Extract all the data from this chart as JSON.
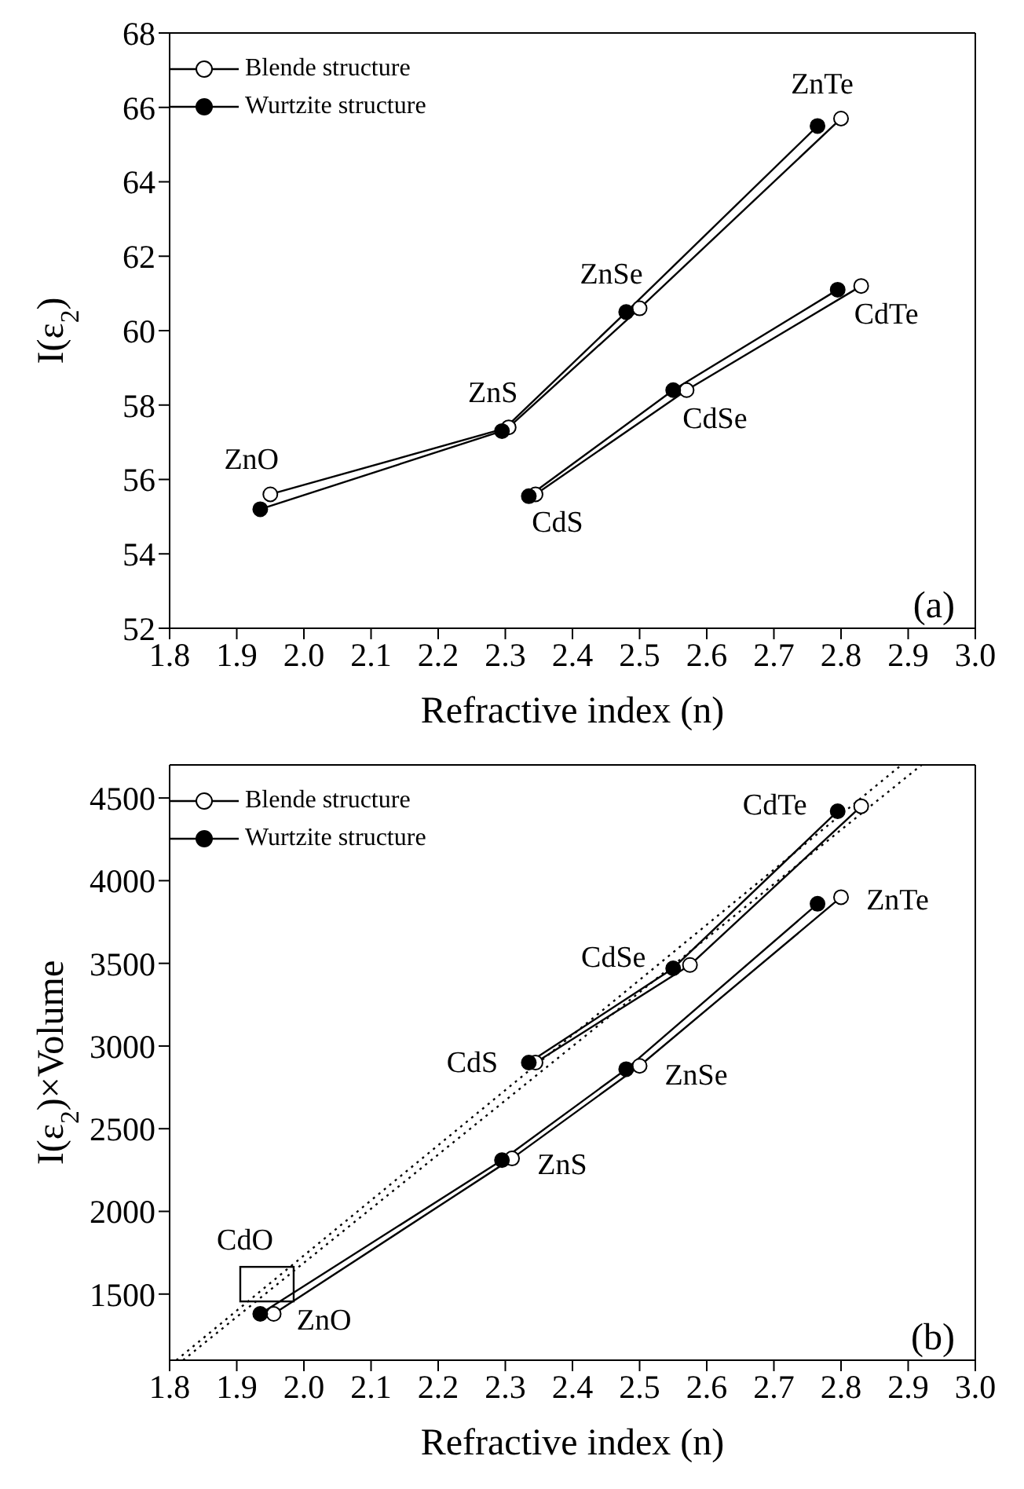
{
  "chart_data": [
    {
      "type": "line",
      "xlabel": "Refractive index (n)",
      "ylabel": "I(ε$_{2}$)",
      "xlim": [
        1.8,
        3.0
      ],
      "xticks": [
        {
          "value": 1.8,
          "label": "1.8"
        },
        {
          "value": 1.9,
          "label": "1.9"
        },
        {
          "value": 2.0,
          "label": "2.0"
        },
        {
          "value": 2.1,
          "label": "2.1"
        },
        {
          "value": 2.2,
          "label": "2.2"
        },
        {
          "value": 2.3,
          "label": "2.3"
        },
        {
          "value": 2.4,
          "label": "2.4"
        },
        {
          "value": 2.5,
          "label": "2.5"
        },
        {
          "value": 2.6,
          "label": "2.6"
        },
        {
          "value": 2.7,
          "label": "2.7"
        },
        {
          "value": 2.8,
          "label": "2.8"
        },
        {
          "value": 2.9,
          "label": "2.9"
        },
        {
          "value": 3.0,
          "label": "3.0"
        }
      ],
      "ylim": [
        52,
        68
      ],
      "yticks": [
        52,
        54,
        56,
        58,
        60,
        62,
        64,
        66,
        68
      ],
      "grid": false,
      "legend": "top left",
      "marker": "circle",
      "line_style": "solid",
      "series": [
        {
          "name": "Blende structure",
          "color": "#000000",
          "x": [
            1.95,
            2.305,
            2.5,
            2.8
          ],
          "values": [
            55.6,
            57.4,
            60.6,
            65.7
          ]
        },
        {
          "name": "Wurtzite structure",
          "color": "#000000",
          "x": [
            1.935,
            2.295,
            2.48,
            2.765
          ],
          "values": [
            55.2,
            57.3,
            60.5,
            65.5
          ]
        },
        {
          "color": "#000000",
          "x": [
            2.345,
            2.57,
            2.83
          ],
          "values": [
            55.6,
            58.4,
            61.2
          ]
        },
        {
          "color": "#000000",
          "x": [
            2.335,
            2.55,
            2.795
          ],
          "values": [
            55.55,
            58.4,
            61.1
          ]
        }
      ],
      "annotations": [
        {
          "text": "ZnO",
          "x": 1.95,
          "y": 55.6
        },
        {
          "text": "ZnS",
          "x": 2.305,
          "y": 57.4
        },
        {
          "text": "ZnSe",
          "x": 2.5,
          "y": 60.6
        },
        {
          "text": "ZnTe",
          "x": 2.8,
          "y": 65.7
        },
        {
          "text": "CdS",
          "x": 2.345,
          "y": 55.6
        },
        {
          "text": "CdSe",
          "x": 2.57,
          "y": 58.4
        },
        {
          "text": "CdTe",
          "x": 2.83,
          "y": 61.2
        },
        "(a)"
      ]
    },
    {
      "type": "line",
      "xlabel": "Refractive index (n)",
      "ylabel": "I(ε$_{2}$)×Volume",
      "xlim": [
        1.8,
        3.0
      ],
      "xticks": [
        {
          "value": 1.8,
          "label": "1.8"
        },
        {
          "value": 1.9,
          "label": "1.9"
        },
        {
          "value": 2.0,
          "label": "2.0"
        },
        {
          "value": 2.1,
          "label": "2.1"
        },
        {
          "value": 2.2,
          "label": "2.2"
        },
        {
          "value": 2.3,
          "label": "2.3"
        },
        {
          "value": 2.4,
          "label": "2.4"
        },
        {
          "value": 2.5,
          "label": "2.5"
        },
        {
          "value": 2.6,
          "label": "2.6"
        },
        {
          "value": 2.7,
          "label": "2.7"
        },
        {
          "value": 2.8,
          "label": "2.8"
        },
        {
          "value": 2.9,
          "label": "2.9"
        },
        {
          "value": 3.0,
          "label": "3.0"
        }
      ],
      "ylim": [
        1100,
        4700
      ],
      "yticks": [
        1500,
        2000,
        2500,
        3000,
        3500,
        4000,
        4500
      ],
      "grid": false,
      "legend": "top left",
      "marker": "circle",
      "line_style": "solid",
      "series": [
        {
          "name": "Blende structure",
          "color": "#000000",
          "x": [
            1.955,
            2.31,
            2.5,
            2.8
          ],
          "values": [
            1380,
            2320,
            2880,
            3900
          ]
        },
        {
          "name": "Wurtzite structure",
          "color": "#000000",
          "x": [
            1.935,
            2.295,
            2.48,
            2.765
          ],
          "values": [
            1380,
            2310,
            2860,
            3860
          ]
        },
        {
          "color": "#000000",
          "x": [
            2.345,
            2.575,
            2.83
          ],
          "values": [
            2900,
            3490,
            4450
          ]
        },
        {
          "color": "#000000",
          "x": [
            2.335,
            2.55,
            2.795
          ],
          "values": [
            2900,
            3470,
            4420
          ]
        },
        {
          "type": "line",
          "color": "#000000",
          "line_style": "dotted",
          "marker": "none",
          "x": [
            1.81,
            2.89
          ],
          "values": [
            1100,
            4700
          ]
        },
        {
          "type": "line",
          "color": "#000000",
          "line_style": "dotted",
          "marker": "none",
          "x": [
            1.82,
            2.92
          ],
          "values": [
            1100,
            4700
          ]
        },
        {
          "type": "scatter",
          "color": "#000000",
          "marker": "square",
          "x": [
            1.945
          ],
          "values": [
            1560
          ]
        }
      ],
      "annotations": [
        {
          "text": "ZnO",
          "x": 1.955,
          "y": 1380
        },
        {
          "text": "ZnS",
          "x": 2.31,
          "y": 2320
        },
        {
          "text": "ZnSe",
          "x": 2.5,
          "y": 2880
        },
        {
          "text": "ZnTe",
          "x": 2.8,
          "y": 3900
        },
        {
          "text": "CdS",
          "x": 2.335,
          "y": 2900
        },
        {
          "text": "CdSe",
          "x": 2.55,
          "y": 3470
        },
        {
          "text": "CdTe",
          "x": 2.795,
          "y": 4420
        },
        {
          "text": "CdO",
          "x": 1.945,
          "y": 1560
        },
        "(b)"
      ]
    }
  ]
}
